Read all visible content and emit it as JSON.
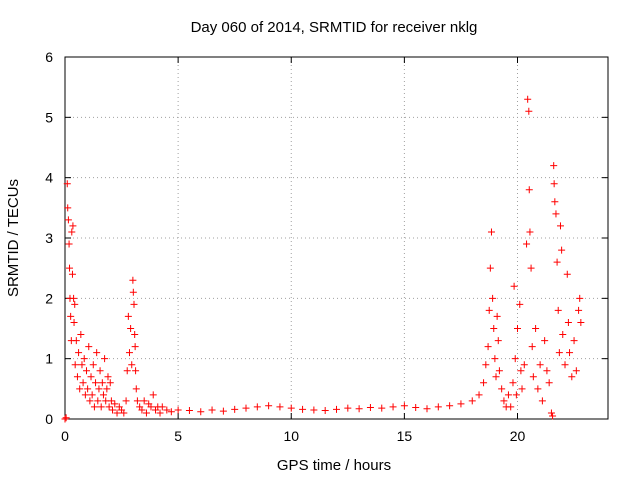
{
  "chart_data": {
    "type": "scatter",
    "title": "Day 060 of 2014, SRMTID for receiver nklg",
    "xlabel": "GPS time / hours",
    "ylabel": "SRMTID / TECUs",
    "xlim": [
      0,
      24
    ],
    "ylim": [
      0,
      6
    ],
    "xticks": [
      0,
      5,
      10,
      15,
      20
    ],
    "xtick_labels": [
      "0",
      "5",
      "10",
      "15",
      "20"
    ],
    "yticks": [
      0,
      1,
      2,
      3,
      4,
      5,
      6
    ],
    "ytick_labels": [
      "0",
      "1",
      "2",
      "3",
      "4",
      "5",
      "6"
    ],
    "grid": true,
    "marker": "+",
    "color": "#ff0000",
    "series": [
      {
        "name": "nklg",
        "points": [
          [
            0.0,
            0.0
          ],
          [
            0.05,
            0.02
          ],
          [
            0.1,
            3.9
          ],
          [
            0.12,
            3.5
          ],
          [
            0.15,
            3.3
          ],
          [
            0.18,
            2.9
          ],
          [
            0.2,
            2.5
          ],
          [
            0.22,
            2.0
          ],
          [
            0.25,
            1.7
          ],
          [
            0.28,
            1.3
          ],
          [
            0.3,
            3.1
          ],
          [
            0.33,
            2.4
          ],
          [
            0.35,
            3.2
          ],
          [
            0.38,
            2.0
          ],
          [
            0.4,
            1.6
          ],
          [
            0.43,
            1.9
          ],
          [
            0.45,
            0.9
          ],
          [
            0.5,
            1.3
          ],
          [
            0.55,
            0.7
          ],
          [
            0.6,
            1.1
          ],
          [
            0.65,
            0.5
          ],
          [
            0.7,
            1.4
          ],
          [
            0.75,
            0.9
          ],
          [
            0.8,
            0.6
          ],
          [
            0.85,
            1.0
          ],
          [
            0.9,
            0.4
          ],
          [
            0.95,
            0.8
          ],
          [
            1.0,
            0.5
          ],
          [
            1.05,
            1.2
          ],
          [
            1.1,
            0.3
          ],
          [
            1.15,
            0.7
          ],
          [
            1.2,
            0.4
          ],
          [
            1.25,
            0.9
          ],
          [
            1.3,
            0.2
          ],
          [
            1.35,
            0.6
          ],
          [
            1.4,
            1.1
          ],
          [
            1.45,
            0.3
          ],
          [
            1.5,
            0.5
          ],
          [
            1.55,
            0.8
          ],
          [
            1.6,
            0.2
          ],
          [
            1.65,
            0.6
          ],
          [
            1.7,
            0.4
          ],
          [
            1.75,
            1.0
          ],
          [
            1.8,
            0.3
          ],
          [
            1.85,
            0.5
          ],
          [
            1.9,
            0.7
          ],
          [
            1.95,
            0.2
          ],
          [
            2.0,
            0.6
          ],
          [
            2.05,
            0.3
          ],
          [
            2.1,
            0.15
          ],
          [
            2.2,
            0.25
          ],
          [
            2.3,
            0.1
          ],
          [
            2.4,
            0.2
          ],
          [
            2.5,
            0.15
          ],
          [
            2.6,
            0.1
          ],
          [
            2.7,
            0.3
          ],
          [
            2.75,
            0.8
          ],
          [
            2.8,
            1.7
          ],
          [
            2.85,
            1.1
          ],
          [
            2.9,
            1.5
          ],
          [
            2.95,
            0.9
          ],
          [
            3.0,
            2.3
          ],
          [
            3.02,
            2.1
          ],
          [
            3.05,
            1.9
          ],
          [
            3.08,
            1.4
          ],
          [
            3.1,
            1.2
          ],
          [
            3.12,
            0.8
          ],
          [
            3.15,
            0.5
          ],
          [
            3.2,
            0.3
          ],
          [
            3.3,
            0.2
          ],
          [
            3.4,
            0.15
          ],
          [
            3.5,
            0.3
          ],
          [
            3.6,
            0.1
          ],
          [
            3.7,
            0.25
          ],
          [
            3.8,
            0.2
          ],
          [
            3.9,
            0.4
          ],
          [
            4.0,
            0.15
          ],
          [
            4.1,
            0.2
          ],
          [
            4.2,
            0.1
          ],
          [
            4.3,
            0.2
          ],
          [
            4.5,
            0.15
          ],
          [
            4.7,
            0.12
          ],
          [
            5.0,
            0.15
          ],
          [
            5.5,
            0.14
          ],
          [
            6.0,
            0.12
          ],
          [
            6.5,
            0.15
          ],
          [
            7.0,
            0.13
          ],
          [
            7.5,
            0.16
          ],
          [
            8.0,
            0.18
          ],
          [
            8.5,
            0.2
          ],
          [
            9.0,
            0.22
          ],
          [
            9.5,
            0.2
          ],
          [
            10.0,
            0.18
          ],
          [
            10.5,
            0.16
          ],
          [
            11.0,
            0.15
          ],
          [
            11.5,
            0.14
          ],
          [
            12.0,
            0.16
          ],
          [
            12.5,
            0.18
          ],
          [
            13.0,
            0.17
          ],
          [
            13.5,
            0.19
          ],
          [
            14.0,
            0.18
          ],
          [
            14.5,
            0.2
          ],
          [
            15.0,
            0.22
          ],
          [
            15.5,
            0.19
          ],
          [
            16.0,
            0.17
          ],
          [
            16.5,
            0.2
          ],
          [
            17.0,
            0.22
          ],
          [
            17.5,
            0.25
          ],
          [
            18.0,
            0.3
          ],
          [
            18.3,
            0.4
          ],
          [
            18.5,
            0.6
          ],
          [
            18.6,
            0.9
          ],
          [
            18.7,
            1.2
          ],
          [
            18.75,
            1.8
          ],
          [
            18.8,
            2.5
          ],
          [
            18.85,
            3.1
          ],
          [
            18.9,
            2.0
          ],
          [
            18.95,
            1.5
          ],
          [
            19.0,
            1.0
          ],
          [
            19.05,
            0.7
          ],
          [
            19.1,
            1.7
          ],
          [
            19.15,
            1.3
          ],
          [
            19.2,
            0.8
          ],
          [
            19.3,
            0.5
          ],
          [
            19.4,
            0.3
          ],
          [
            19.5,
            0.2
          ],
          [
            19.6,
            0.4
          ],
          [
            19.7,
            0.2
          ],
          [
            19.8,
            0.6
          ],
          [
            19.85,
            2.2
          ],
          [
            19.9,
            1.0
          ],
          [
            19.95,
            0.4
          ],
          [
            20.0,
            1.5
          ],
          [
            20.1,
            1.9
          ],
          [
            20.15,
            0.8
          ],
          [
            20.2,
            0.5
          ],
          [
            20.3,
            0.9
          ],
          [
            20.4,
            2.9
          ],
          [
            20.45,
            5.3
          ],
          [
            20.5,
            5.1
          ],
          [
            20.52,
            3.8
          ],
          [
            20.55,
            3.1
          ],
          [
            20.6,
            2.5
          ],
          [
            20.65,
            1.2
          ],
          [
            20.7,
            0.7
          ],
          [
            20.8,
            1.5
          ],
          [
            20.9,
            0.5
          ],
          [
            21.0,
            0.9
          ],
          [
            21.1,
            0.3
          ],
          [
            21.2,
            1.3
          ],
          [
            21.3,
            0.8
          ],
          [
            21.4,
            0.6
          ],
          [
            21.5,
            0.1
          ],
          [
            21.55,
            0.05
          ],
          [
            21.6,
            4.2
          ],
          [
            21.62,
            3.9
          ],
          [
            21.65,
            3.6
          ],
          [
            21.7,
            3.4
          ],
          [
            21.75,
            2.6
          ],
          [
            21.8,
            1.8
          ],
          [
            21.85,
            1.1
          ],
          [
            21.9,
            3.2
          ],
          [
            21.95,
            2.8
          ],
          [
            22.0,
            1.4
          ],
          [
            22.1,
            0.9
          ],
          [
            22.2,
            2.4
          ],
          [
            22.25,
            1.6
          ],
          [
            22.3,
            1.1
          ],
          [
            22.4,
            0.7
          ],
          [
            22.5,
            1.3
          ],
          [
            22.6,
            0.8
          ],
          [
            22.7,
            1.8
          ],
          [
            22.75,
            2.0
          ],
          [
            22.8,
            1.6
          ]
        ]
      }
    ]
  }
}
